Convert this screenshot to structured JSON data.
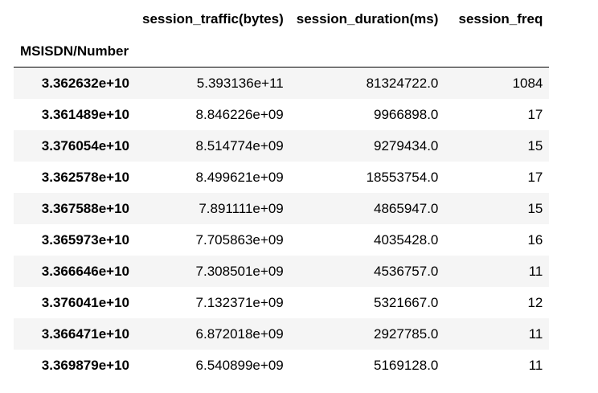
{
  "table": {
    "columns": [
      "",
      "session_traffic(bytes)",
      "session_duration(ms)",
      "session_freq"
    ],
    "index_name": "MSISDN/Number",
    "rows": [
      {
        "index": "3.362632e+10",
        "traffic": "5.393136e+11",
        "duration": "81324722.0",
        "freq": "1084"
      },
      {
        "index": "3.361489e+10",
        "traffic": "8.846226e+09",
        "duration": "9966898.0",
        "freq": "17"
      },
      {
        "index": "3.376054e+10",
        "traffic": "8.514774e+09",
        "duration": "9279434.0",
        "freq": "15"
      },
      {
        "index": "3.362578e+10",
        "traffic": "8.499621e+09",
        "duration": "18553754.0",
        "freq": "17"
      },
      {
        "index": "3.367588e+10",
        "traffic": "7.891111e+09",
        "duration": "4865947.0",
        "freq": "15"
      },
      {
        "index": "3.365973e+10",
        "traffic": "7.705863e+09",
        "duration": "4035428.0",
        "freq": "16"
      },
      {
        "index": "3.366646e+10",
        "traffic": "7.308501e+09",
        "duration": "4536757.0",
        "freq": "11"
      },
      {
        "index": "3.376041e+10",
        "traffic": "7.132371e+09",
        "duration": "5321667.0",
        "freq": "12"
      },
      {
        "index": "3.366471e+10",
        "traffic": "6.872018e+09",
        "duration": "2927785.0",
        "freq": "11"
      },
      {
        "index": "3.369879e+10",
        "traffic": "6.540899e+09",
        "duration": "5169128.0",
        "freq": "11"
      }
    ]
  }
}
